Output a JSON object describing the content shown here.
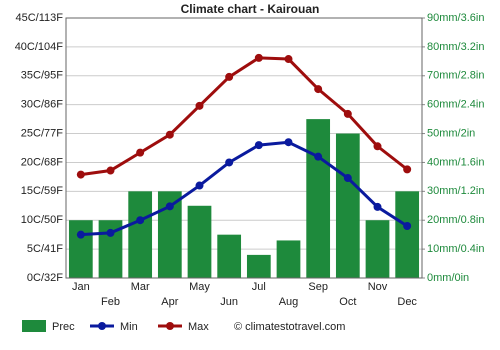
{
  "chart_data": {
    "type": "bar",
    "title": "Climate chart - Kairouan",
    "categories": [
      "Jan",
      "Feb",
      "Mar",
      "Apr",
      "May",
      "Jun",
      "Jul",
      "Aug",
      "Sep",
      "Oct",
      "Nov",
      "Dec"
    ],
    "series": [
      {
        "name": "Prec",
        "type": "bar",
        "axis": "y2",
        "color": "#1e8a3c",
        "values": [
          20,
          20,
          30,
          30,
          25,
          15,
          8,
          13,
          55,
          50,
          20,
          30
        ]
      },
      {
        "name": "Min",
        "type": "line",
        "color": "#0a1a9e",
        "values": [
          7.5,
          7.8,
          10,
          12.4,
          16,
          20,
          23,
          23.5,
          21,
          17.3,
          12.3,
          9
        ]
      },
      {
        "name": "Max",
        "type": "line",
        "color": "#9e0d0d",
        "values": [
          17.9,
          18.6,
          21.7,
          24.8,
          29.8,
          34.8,
          38.1,
          37.9,
          32.7,
          28.4,
          22.8,
          18.8
        ]
      }
    ],
    "ylim": [
      0,
      45
    ],
    "yticks": [
      {
        "value": 0,
        "label": "0C/32F"
      },
      {
        "value": 5,
        "label": "5C/41F"
      },
      {
        "value": 10,
        "label": "10C/50F"
      },
      {
        "value": 15,
        "label": "15C/59F"
      },
      {
        "value": 20,
        "label": "20C/68F"
      },
      {
        "value": 25,
        "label": "25C/77F"
      },
      {
        "value": 30,
        "label": "30C/86F"
      },
      {
        "value": 35,
        "label": "35C/95F"
      },
      {
        "value": 40,
        "label": "40C/104F"
      },
      {
        "value": 45,
        "label": "45C/113F"
      }
    ],
    "y2lim": [
      0,
      90
    ],
    "y2ticks": [
      {
        "value": 0,
        "label": "0mm/0in"
      },
      {
        "value": 10,
        "label": "10mm/0.4in"
      },
      {
        "value": 20,
        "label": "20mm/0.8in"
      },
      {
        "value": 30,
        "label": "30mm/1.2in"
      },
      {
        "value": 40,
        "label": "40mm/1.6in"
      },
      {
        "value": 50,
        "label": "50mm/2in"
      },
      {
        "value": 60,
        "label": "60mm/2.4in"
      },
      {
        "value": 70,
        "label": "70mm/2.8in"
      },
      {
        "value": 80,
        "label": "80mm/3.2in"
      },
      {
        "value": 90,
        "label": "90mm/3.6in"
      }
    ],
    "grid": true,
    "legend": "bottom",
    "credit": "© climatestotravel.com"
  }
}
